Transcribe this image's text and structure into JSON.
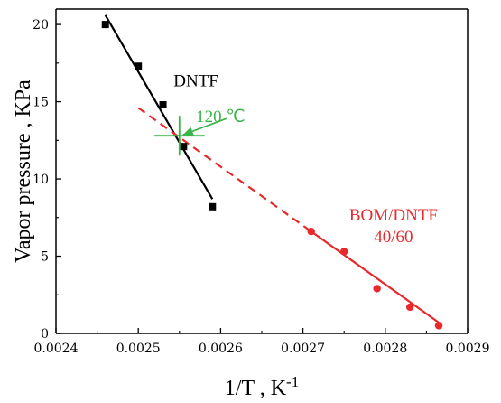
{
  "chart_data": {
    "type": "scatter",
    "xlabel": "1/T , K",
    "xlabel_superscript": "-1",
    "ylabel": "Vapor pressure , KPa",
    "xlim": [
      0.0024,
      0.0029
    ],
    "ylim": [
      0,
      21
    ],
    "x_ticks": [
      0.0024,
      0.0025,
      0.0026,
      0.0027,
      0.0028,
      0.0029
    ],
    "x_tick_labels": [
      "0.0024",
      "0.0025",
      "0.0026",
      "0.0027",
      "0.0028",
      "0.0029"
    ],
    "y_ticks": [
      0,
      5,
      10,
      15,
      20
    ],
    "y_tick_labels": [
      "0",
      "5",
      "10",
      "15",
      "20"
    ],
    "grid": false,
    "series": [
      {
        "name": "DNTF",
        "color": "#000000",
        "marker": "square",
        "x": [
          0.00246,
          0.0025,
          0.00253,
          0.002555,
          0.00259
        ],
        "y": [
          20.0,
          17.3,
          14.8,
          12.1,
          8.2
        ],
        "fit_line": {
          "x": [
            0.00246,
            0.00259
          ],
          "y": [
            20.6,
            8.7
          ],
          "style": "solid"
        }
      },
      {
        "name": "BOM/DNTF 40/60",
        "color": "#e8282b",
        "marker": "circle",
        "x": [
          0.00271,
          0.00275,
          0.00279,
          0.00283,
          0.002865
        ],
        "y": [
          6.6,
          5.3,
          2.9,
          1.7,
          0.5
        ],
        "fit_line": {
          "x": [
            0.0025,
            0.002865
          ],
          "y": [
            14.6,
            0.7
          ],
          "dash_before_x": 0.00271
        }
      }
    ],
    "annotations": [
      {
        "text": "DNTF",
        "color": "#000000",
        "x": 0.00257,
        "y": 16.0
      },
      {
        "text": "120 ℃",
        "color": "#3bb44a",
        "x": 0.0026,
        "y": 13.7
      },
      {
        "text": "BOM/DNTF",
        "color": "#e8282b",
        "x": 0.00281,
        "y": 7.3
      },
      {
        "text": "40/60",
        "color": "#e8282b",
        "x": 0.00281,
        "y": 5.9
      }
    ],
    "crosshair": {
      "color": "#3bb44a",
      "x": 0.00255,
      "y": 12.8
    }
  }
}
